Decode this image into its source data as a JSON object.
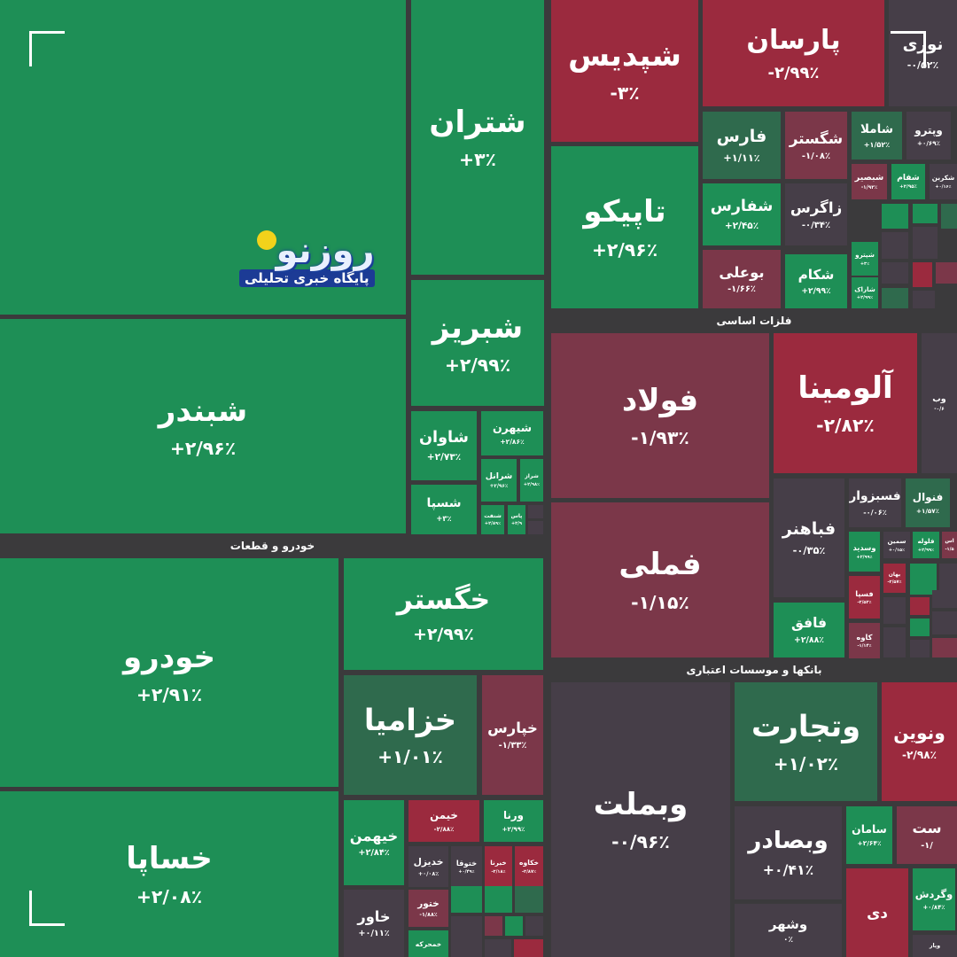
{
  "colors": {
    "green": "#1e8f56",
    "dgreen": "#2f6a4d",
    "grey": "#463e48",
    "maroon": "#7b3749",
    "red": "#9b2a3e",
    "bg": "#3b3a3c"
  },
  "sectors": [
    "خودرو و قطعات",
    "فلزات اساسی",
    "بانکها و موسسات اعتباری"
  ],
  "logo": {
    "mark": "روزنو",
    "tagline": "پایگاه خبری تحلیلی"
  },
  "chart_data": {
    "type": "heatmap",
    "cells": [
      {
        "name": "",
        "change": "",
        "color": "green"
      },
      {
        "name": "شبندر",
        "change": "+۲/۹۶٪",
        "color": "green"
      },
      {
        "name": "شتران",
        "change": "+۳٪",
        "color": "green"
      },
      {
        "name": "شبریز",
        "change": "+۲/۹۹٪",
        "color": "green"
      },
      {
        "name": "شاوان",
        "change": "+۲/۷۳٪",
        "color": "green"
      },
      {
        "name": "شیهرن",
        "change": "+۲/۸۶٪",
        "color": "green"
      },
      {
        "name": "شرانل",
        "change": "+۲/۹۶٪",
        "color": "green"
      },
      {
        "name": "شراز",
        "change": "+۲/۹۸٪",
        "color": "green"
      },
      {
        "name": "شسپا",
        "change": "+۳٪",
        "color": "green"
      },
      {
        "name": "شنفت",
        "change": "+۲/۸۹٪",
        "color": "green"
      },
      {
        "name": "پاس",
        "change": "+۲/۹",
        "color": "green"
      },
      {
        "name": "",
        "change": "",
        "color": "grey"
      },
      {
        "name": "",
        "change": "",
        "color": "grey"
      },
      {
        "name": "خودرو",
        "change": "+۲/۹۱٪",
        "color": "green"
      },
      {
        "name": "خساپا",
        "change": "+۲/۰۸٪",
        "color": "green"
      },
      {
        "name": "خگستر",
        "change": "+۲/۹۹٪",
        "color": "green"
      },
      {
        "name": "خزامیا",
        "change": "+۱/۰۱٪",
        "color": "dgreen"
      },
      {
        "name": "خپارس",
        "change": "-۱/۳۳٪",
        "color": "maroon"
      },
      {
        "name": "خیهمن",
        "change": "+۲/۸۴٪",
        "color": "green"
      },
      {
        "name": "خیمن",
        "change": "-۲/۸۸٪",
        "color": "red"
      },
      {
        "name": "ورنا",
        "change": "+۲/۹۹٪",
        "color": "green"
      },
      {
        "name": "خدیزل",
        "change": "+۰/۰۸٪",
        "color": "grey"
      },
      {
        "name": "ختوقا",
        "change": "+۰/۴۹٪",
        "color": "grey"
      },
      {
        "name": "خبرنا",
        "change": "-۲/۱۸٪",
        "color": "red"
      },
      {
        "name": "خکاوه",
        "change": "-۲/۸۷٪",
        "color": "red"
      },
      {
        "name": "خاور",
        "change": "+۰/۱۱٪",
        "color": "grey"
      },
      {
        "name": "ختور",
        "change": "-۱/۸۸٪",
        "color": "maroon"
      },
      {
        "name": "خمحرکه",
        "change": "",
        "color": "green"
      },
      {
        "name": "شپدیس",
        "change": "-۳٪",
        "color": "red"
      },
      {
        "name": "پارسان",
        "change": "-۲/۹۹٪",
        "color": "red"
      },
      {
        "name": "نوری",
        "change": "-۰/۵۲٪",
        "color": "grey"
      },
      {
        "name": "تاپیکو",
        "change": "+۲/۹۶٪",
        "color": "green"
      },
      {
        "name": "فارس",
        "change": "+۱/۱۱٪",
        "color": "dgreen"
      },
      {
        "name": "شگستر",
        "change": "-۱/۰۸٪",
        "color": "maroon"
      },
      {
        "name": "شاملا",
        "change": "+۱/۵۲٪",
        "color": "dgreen"
      },
      {
        "name": "وپترو",
        "change": "+۰/۶۹٪",
        "color": "grey"
      },
      {
        "name": "شبصیر",
        "change": "-۱/۹۳٪",
        "color": "maroon"
      },
      {
        "name": "شفام",
        "change": "+۲/۹۵٪",
        "color": "green"
      },
      {
        "name": "شکربن",
        "change": "+۰/۱۶٪",
        "color": "grey"
      },
      {
        "name": "شفارس",
        "change": "+۲/۴۵٪",
        "color": "green"
      },
      {
        "name": "زاگرس",
        "change": "-۰/۳۴٪",
        "color": "grey"
      },
      {
        "name": "بوعلی",
        "change": "-۱/۶۶٪",
        "color": "maroon"
      },
      {
        "name": "شکام",
        "change": "+۲/۹۹٪",
        "color": "green"
      },
      {
        "name": "شپترو",
        "change": "+۳٪",
        "color": "green"
      },
      {
        "name": "شاراک",
        "change": "+۲/۹۹٪",
        "color": "green"
      },
      {
        "name": "فولاد",
        "change": "-۱/۹۳٪",
        "color": "maroon"
      },
      {
        "name": "فملی",
        "change": "-۱/۱۵٪",
        "color": "maroon"
      },
      {
        "name": "آلومینا",
        "change": "-۲/۸۲٪",
        "color": "red"
      },
      {
        "name": "وب",
        "change": "-۰/۶",
        "color": "grey"
      },
      {
        "name": "فباهنر",
        "change": "-۰/۳۵٪",
        "color": "grey"
      },
      {
        "name": "فسبزوار",
        "change": "-۰/۰۶٪",
        "color": "grey"
      },
      {
        "name": "فنوال",
        "change": "+۱/۵۷٪",
        "color": "dgreen"
      },
      {
        "name": "فافق",
        "change": "+۲/۸۸٪",
        "color": "green"
      },
      {
        "name": "وسدید",
        "change": "+۲/۹۹٪",
        "color": "green"
      },
      {
        "name": "سمین",
        "change": "+۰/۱۵٪",
        "color": "grey"
      },
      {
        "name": "فلوله",
        "change": "+۲/۹۹٪",
        "color": "green"
      },
      {
        "name": "اس",
        "change": "-۱/۵",
        "color": "maroon"
      },
      {
        "name": "بهان",
        "change": "-۲/۵۷٪",
        "color": "red"
      },
      {
        "name": "فسپا",
        "change": "-۲/۵۲٪",
        "color": "red"
      },
      {
        "name": "کاوه",
        "change": "-۱/۱۴٪",
        "color": "maroon"
      },
      {
        "name": "وبملت",
        "change": "-۰/۹۶٪",
        "color": "grey"
      },
      {
        "name": "وتجارت",
        "change": "+۱/۰۲٪",
        "color": "dgreen"
      },
      {
        "name": "ونوین",
        "change": "-۲/۹۸٪",
        "color": "red"
      },
      {
        "name": "وبصادر",
        "change": "+۰/۴۱٪",
        "color": "grey"
      },
      {
        "name": "وشهر",
        "change": "۰٪",
        "color": "grey"
      },
      {
        "name": "سامان",
        "change": "+۲/۶۴٪",
        "color": "green"
      },
      {
        "name": "ست",
        "change": "-۱/",
        "color": "maroon"
      },
      {
        "name": "دی",
        "change": "",
        "color": "red"
      },
      {
        "name": "وگردش",
        "change": "+۰/۸۴٪",
        "color": "green"
      },
      {
        "name": "وپار",
        "change": "",
        "color": "grey"
      }
    ]
  }
}
